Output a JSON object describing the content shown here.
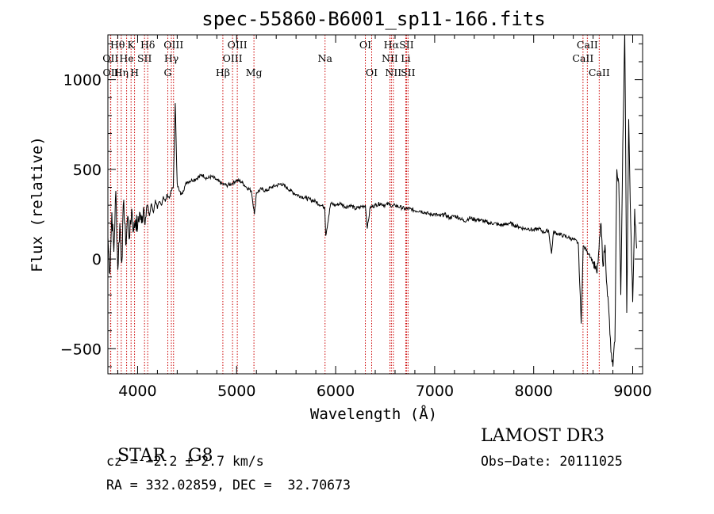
{
  "chart_data": {
    "type": "line",
    "title": "spec-55860-B6001_sp11-166.fits",
    "xlabel": "Wavelength (Å)",
    "ylabel": "Flux (relative)",
    "xlim": [
      3700,
      9100
    ],
    "ylim": [
      -640,
      1250
    ],
    "xticks": [
      4000,
      5000,
      6000,
      7000,
      8000,
      9000
    ],
    "yticks": [
      -500,
      0,
      500,
      1000
    ],
    "line_color": "#000000",
    "marker_color": "#cc0000",
    "series": [
      {
        "x": [
          3700,
          3720,
          3740,
          3760,
          3780,
          3800,
          3820,
          3840,
          3860,
          3880,
          3900,
          3920,
          3940,
          3960,
          3980,
          4000,
          4020,
          4040,
          4060,
          4080,
          4100,
          4120,
          4140,
          4160,
          4180,
          4200,
          4220,
          4240,
          4260,
          4280,
          4300,
          4320,
          4340,
          4360,
          4380,
          4400,
          4420,
          4440,
          4460,
          4480,
          4500,
          4550,
          4600,
          4650,
          4700,
          4750,
          4800,
          4850,
          4900,
          4950,
          5000,
          5050,
          5100,
          5150,
          5180,
          5200,
          5250,
          5300,
          5350,
          5400,
          5450,
          5500,
          5550,
          5600,
          5650,
          5700,
          5750,
          5800,
          5850,
          5890,
          5900,
          5950,
          6000,
          6050,
          6100,
          6150,
          6200,
          6250,
          6300,
          6320,
          6350,
          6400,
          6450,
          6500,
          6550,
          6563,
          6600,
          6650,
          6700,
          6750,
          6800,
          6850,
          6900,
          6950,
          7000,
          7050,
          7100,
          7150,
          7200,
          7250,
          7300,
          7350,
          7400,
          7450,
          7500,
          7550,
          7600,
          7650,
          7700,
          7750,
          7800,
          7850,
          7900,
          7950,
          8000,
          8050,
          8100,
          8150,
          8180,
          8200,
          8250,
          8300,
          8350,
          8400,
          8450,
          8480,
          8500,
          8520,
          8540,
          8560,
          8600,
          8640,
          8660,
          8680,
          8700,
          8720,
          8740,
          8760,
          8780,
          8800,
          8820,
          8840,
          8860,
          8880,
          8900,
          8920,
          8940,
          8960,
          8980,
          9000,
          9020,
          9040
        ],
        "values": [
          120,
          -80,
          260,
          40,
          380,
          -60,
          200,
          -20,
          330,
          80,
          240,
          120,
          280,
          160,
          220,
          170,
          260,
          200,
          290,
          230,
          300,
          240,
          310,
          260,
          330,
          280,
          320,
          300,
          350,
          320,
          360,
          340,
          380,
          400,
          870,
          420,
          380,
          360,
          380,
          410,
          430,
          440,
          450,
          470,
          450,
          460,
          440,
          420,
          410,
          420,
          440,
          430,
          400,
          380,
          250,
          370,
          390,
          380,
          400,
          410,
          420,
          400,
          380,
          360,
          350,
          340,
          330,
          320,
          300,
          290,
          130,
          310,
          300,
          310,
          290,
          300,
          280,
          290,
          300,
          170,
          290,
          300,
          310,
          300,
          310,
          290,
          300,
          290,
          280,
          280,
          270,
          270,
          260,
          250,
          250,
          240,
          250,
          230,
          240,
          230,
          210,
          230,
          220,
          220,
          210,
          200,
          200,
          190,
          190,
          200,
          190,
          180,
          170,
          170,
          160,
          170,
          150,
          160,
          30,
          150,
          140,
          130,
          120,
          110,
          90,
          -360,
          70,
          60,
          40,
          30,
          -20,
          -80,
          60,
          200,
          -40,
          80,
          -150,
          -300,
          -520,
          -600,
          -460,
          500,
          420,
          -200,
          640,
          1270,
          -300,
          780,
          200,
          -240,
          280,
          60
        ]
      }
    ],
    "spectral_lines": [
      {
        "label": "Hθ",
        "wavelength": 3798,
        "row": 1
      },
      {
        "label": "OII",
        "wavelength": 3727,
        "row": 2
      },
      {
        "label": "OII",
        "wavelength": 3729,
        "row": 3
      },
      {
        "label": "He",
        "wavelength": 3889,
        "row": 2
      },
      {
        "label": "Hη",
        "wavelength": 3835,
        "row": 3
      },
      {
        "label": "K",
        "wavelength": 3934,
        "row": 1
      },
      {
        "label": "SII",
        "wavelength": 4070,
        "row": 2
      },
      {
        "label": "H",
        "wavelength": 3969,
        "row": 3
      },
      {
        "label": "Hδ",
        "wavelength": 4102,
        "row": 1
      },
      {
        "label": "OIII",
        "wavelength": 4363,
        "row": 1
      },
      {
        "label": "Hγ",
        "wavelength": 4341,
        "row": 2
      },
      {
        "label": "G",
        "wavelength": 4305,
        "row": 3
      },
      {
        "label": "Hβ",
        "wavelength": 4861,
        "row": 3
      },
      {
        "label": "OIII",
        "wavelength": 5007,
        "row": 1
      },
      {
        "label": "OIII",
        "wavelength": 4959,
        "row": 2
      },
      {
        "label": "Mg",
        "wavelength": 5175,
        "row": 3
      },
      {
        "label": "Na",
        "wavelength": 5893,
        "row": 2
      },
      {
        "label": "OI",
        "wavelength": 6300,
        "row": 1
      },
      {
        "label": "OI",
        "wavelength": 6364,
        "row": 3
      },
      {
        "label": "Hα",
        "wavelength": 6563,
        "row": 1
      },
      {
        "label": "SII",
        "wavelength": 6716,
        "row": 1
      },
      {
        "label": "NII",
        "wavelength": 6548,
        "row": 2
      },
      {
        "label": "Li",
        "wavelength": 6708,
        "row": 2
      },
      {
        "label": "NII",
        "wavelength": 6583,
        "row": 3
      },
      {
        "label": "SII",
        "wavelength": 6731,
        "row": 3
      },
      {
        "label": "CaII",
        "wavelength": 8542,
        "row": 1
      },
      {
        "label": "CaII",
        "wavelength": 8498,
        "row": 2
      },
      {
        "label": "CaII",
        "wavelength": 8662,
        "row": 3
      }
    ]
  },
  "object_class": "STAR",
  "subclass": "G8",
  "survey": "LAMOST DR3",
  "cz_line": "cz = −2.2 ± 2.7 km/s",
  "obs_date_line": "Obs−Date: 20111025",
  "radec_line": "RA = 332.02859, DEC =  32.70673"
}
